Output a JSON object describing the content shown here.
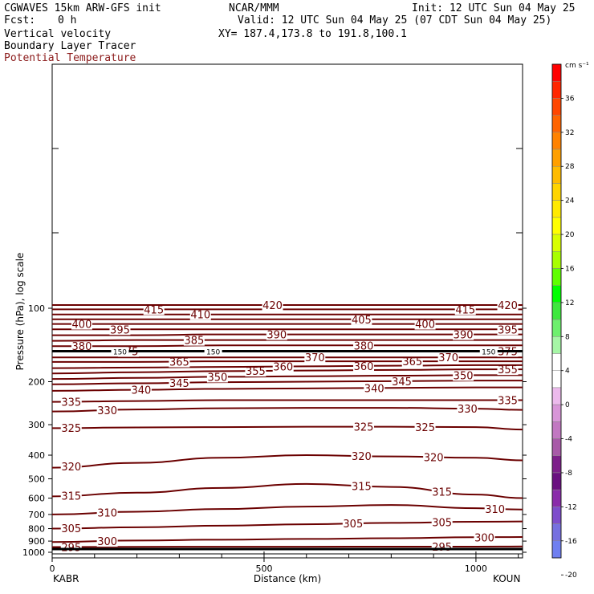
{
  "header": {
    "model": "CGWAVES 15km ARW-GFS init",
    "center": "NCAR/MMM",
    "init": "Init: 12 UTC Sun 04 May 25",
    "fcst_label": "Fcst:",
    "fcst_value": "0 h",
    "valid": "Valid: 12 UTC Sun 04 May 25 (07 CDT Sun 04 May 25)",
    "field1": "Vertical velocity",
    "xy": "XY= 187.4,173.8 to 191.8,100.1",
    "field2": "Boundary Layer Tracer",
    "field3": "Potential Temperature"
  },
  "colors": {
    "contour": "#6b0000",
    "tropopause": "#000000",
    "title_red": "#8b1a1a"
  },
  "chart_data": {
    "type": "line",
    "title": "Potential Temperature",
    "xlabel": "Distance (km)",
    "ylabel": "Pressure (hPa), log scale",
    "y_scale": "log",
    "xlim": [
      0,
      1110
    ],
    "ylim": [
      1000,
      100
    ],
    "x_ticks": [
      0,
      500,
      1000
    ],
    "y_ticks": [
      100,
      200,
      300,
      400,
      500,
      600,
      700,
      800,
      900,
      1000
    ],
    "endpoint_left": "KABR",
    "endpoint_right": "KOUN",
    "contour_x": [
      0,
      200,
      400,
      600,
      800,
      1000,
      1110
    ],
    "contours": [
      {
        "theta": 295,
        "pressure": [
          952,
          950,
          949,
          949,
          948,
          948,
          947
        ],
        "labels": [
          {
            "x": 45,
            "text": "295"
          },
          {
            "x": 920,
            "text": "295"
          }
        ]
      },
      {
        "theta": 300,
        "pressure": [
          908,
          895,
          888,
          882,
          876,
          868,
          866
        ],
        "labels": [
          {
            "x": 130,
            "text": "300"
          },
          {
            "x": 1020,
            "text": "300"
          }
        ]
      },
      {
        "theta": 305,
        "pressure": [
          800,
          790,
          778,
          768,
          758,
          750,
          748
        ],
        "labels": [
          {
            "x": 45,
            "text": "305"
          },
          {
            "x": 710,
            "text": "305"
          },
          {
            "x": 920,
            "text": "305"
          }
        ]
      },
      {
        "theta": 310,
        "pressure": [
          700,
          682,
          665,
          650,
          640,
          660,
          668
        ],
        "labels": [
          {
            "x": 130,
            "text": "310"
          },
          {
            "x": 1045,
            "text": "310"
          }
        ]
      },
      {
        "theta": 315,
        "pressure": [
          590,
          570,
          545,
          525,
          540,
          580,
          600
        ],
        "labels": [
          {
            "x": 45,
            "text": "315"
          },
          {
            "x": 730,
            "text": "315"
          },
          {
            "x": 920,
            "text": "315"
          }
        ]
      },
      {
        "theta": 320,
        "pressure": [
          450,
          430,
          410,
          400,
          405,
          410,
          420
        ],
        "labels": [
          {
            "x": 45,
            "text": "320"
          },
          {
            "x": 730,
            "text": "320"
          },
          {
            "x": 900,
            "text": "320"
          }
        ]
      },
      {
        "theta": 325,
        "pressure": [
          310,
          308,
          307,
          306,
          306,
          307,
          314
        ],
        "labels": [
          {
            "x": 45,
            "text": "325"
          },
          {
            "x": 735,
            "text": "325"
          },
          {
            "x": 880,
            "text": "325"
          }
        ]
      },
      {
        "theta": 330,
        "pressure": [
          265,
          260,
          257,
          256,
          256,
          258,
          261
        ],
        "labels": [
          {
            "x": 130,
            "text": "330"
          },
          {
            "x": 980,
            "text": "330"
          }
        ]
      },
      {
        "theta": 335,
        "pressure": [
          242,
          240,
          238,
          238,
          238,
          238,
          238
        ],
        "labels": [
          {
            "x": 45,
            "text": "335"
          },
          {
            "x": 1075,
            "text": "335"
          }
        ]
      },
      {
        "theta": 340,
        "pressure": [
          218,
          216,
          214,
          213,
          212,
          211,
          211
        ],
        "labels": [
          {
            "x": 210,
            "text": "340"
          },
          {
            "x": 760,
            "text": "340"
          }
        ]
      },
      {
        "theta": 345,
        "pressure": [
          205,
          203,
          201,
          200,
          199,
          198,
          198
        ],
        "labels": [
          {
            "x": 300,
            "text": "345"
          },
          {
            "x": 825,
            "text": "345"
          }
        ]
      },
      {
        "theta": 350,
        "pressure": [
          195,
          193,
          191,
          190,
          189,
          188,
          188
        ],
        "labels": [
          {
            "x": 390,
            "text": "350"
          },
          {
            "x": 970,
            "text": "350"
          }
        ]
      },
      {
        "theta": 355,
        "pressure": [
          185,
          183,
          181,
          180,
          179,
          178,
          178
        ],
        "labels": [
          {
            "x": 480,
            "text": "355"
          },
          {
            "x": 1075,
            "text": "355"
          }
        ]
      },
      {
        "theta": 360,
        "pressure": [
          176,
          175,
          174,
          173,
          172,
          171,
          171
        ],
        "labels": [
          {
            "x": 545,
            "text": "360"
          },
          {
            "x": 735,
            "text": "360"
          }
        ]
      },
      {
        "theta": 365,
        "pressure": [
          166,
          166,
          165,
          165,
          165,
          165,
          165
        ],
        "labels": [
          {
            "x": 300,
            "text": "365"
          },
          {
            "x": 850,
            "text": "365"
          }
        ]
      },
      {
        "theta": 370,
        "pressure": [
          159,
          159,
          159,
          159,
          159,
          159,
          159
        ],
        "labels": [
          {
            "x": 620,
            "text": "370"
          },
          {
            "x": 935,
            "text": "370"
          }
        ]
      },
      {
        "theta": 375,
        "pressure": [
          150,
          150,
          150,
          150,
          150,
          150,
          150
        ],
        "labels": [
          {
            "x": 180,
            "text": "375"
          },
          {
            "x": 1075,
            "text": "375"
          }
        ]
      },
      {
        "theta": 380,
        "pressure": [
          143,
          143,
          142,
          142,
          142,
          142,
          142
        ],
        "labels": [
          {
            "x": 70,
            "text": "380"
          },
          {
            "x": 735,
            "text": "380"
          }
        ]
      },
      {
        "theta": 385,
        "pressure": [
          136,
          135,
          135,
          135,
          135,
          135,
          135
        ],
        "labels": [
          {
            "x": 335,
            "text": "385"
          }
        ]
      },
      {
        "theta": 390,
        "pressure": [
          129,
          129,
          128,
          128,
          128,
          128,
          128
        ],
        "labels": [
          {
            "x": 530,
            "text": "390"
          },
          {
            "x": 970,
            "text": "390"
          }
        ]
      },
      {
        "theta": 395,
        "pressure": [
          122,
          122,
          122,
          122,
          122,
          122,
          122
        ],
        "labels": [
          {
            "x": 160,
            "text": "395"
          },
          {
            "x": 1075,
            "text": "395"
          }
        ]
      },
      {
        "theta": 400,
        "pressure": [
          116,
          116,
          116,
          116,
          116,
          116,
          116
        ],
        "labels": [
          {
            "x": 70,
            "text": "400"
          },
          {
            "x": 880,
            "text": "400"
          }
        ]
      },
      {
        "theta": 405,
        "pressure": [
          111,
          111,
          111,
          111,
          111,
          111,
          111
        ],
        "labels": [
          {
            "x": 730,
            "text": "405"
          }
        ]
      },
      {
        "theta": 410,
        "pressure": [
          106,
          106,
          106,
          106,
          106,
          106,
          106
        ],
        "labels": [
          {
            "x": 350,
            "text": "410"
          }
        ]
      },
      {
        "theta": 415,
        "pressure": [
          101,
          101,
          101,
          101,
          101,
          101,
          101
        ],
        "labels": [
          {
            "x": 240,
            "text": "415"
          },
          {
            "x": 975,
            "text": "415"
          }
        ]
      },
      {
        "theta": 420,
        "pressure": [
          97,
          97,
          97,
          97,
          97,
          97,
          97
        ],
        "labels": [
          {
            "x": 520,
            "text": "420"
          },
          {
            "x": 1075,
            "text": "420"
          }
        ]
      }
    ],
    "tropopause": {
      "pressure": 150,
      "labels": [
        {
          "x": 160,
          "text": "150"
        },
        {
          "x": 380,
          "text": "150"
        },
        {
          "x": 1030,
          "text": "150"
        }
      ]
    },
    "colorbar": {
      "unit": "cm s⁻¹",
      "ticks": [
        "36",
        "32",
        "28",
        "24",
        "20",
        "16",
        "12",
        "8",
        "4",
        "0",
        "-4",
        "-8",
        "-12",
        "-16",
        "-20"
      ],
      "colors": [
        "#ff0000",
        "#ff2600",
        "#ff4600",
        "#ff6400",
        "#ff8200",
        "#ff9f00",
        "#ffbb00",
        "#ffd400",
        "#ffea00",
        "#ffff00",
        "#d8ff00",
        "#a8ff00",
        "#5fff00",
        "#00ff00",
        "#3ee83e",
        "#6ef06e",
        "#a6f6a6",
        "#ffffff",
        "#ffffff",
        "#ecbaec",
        "#d896d8",
        "#c278c2",
        "#a85aa8",
        "#7d1f8a",
        "#6a1080",
        "#8a2caa",
        "#7e4dcc",
        "#7670e0",
        "#6f7ff0"
      ]
    }
  }
}
